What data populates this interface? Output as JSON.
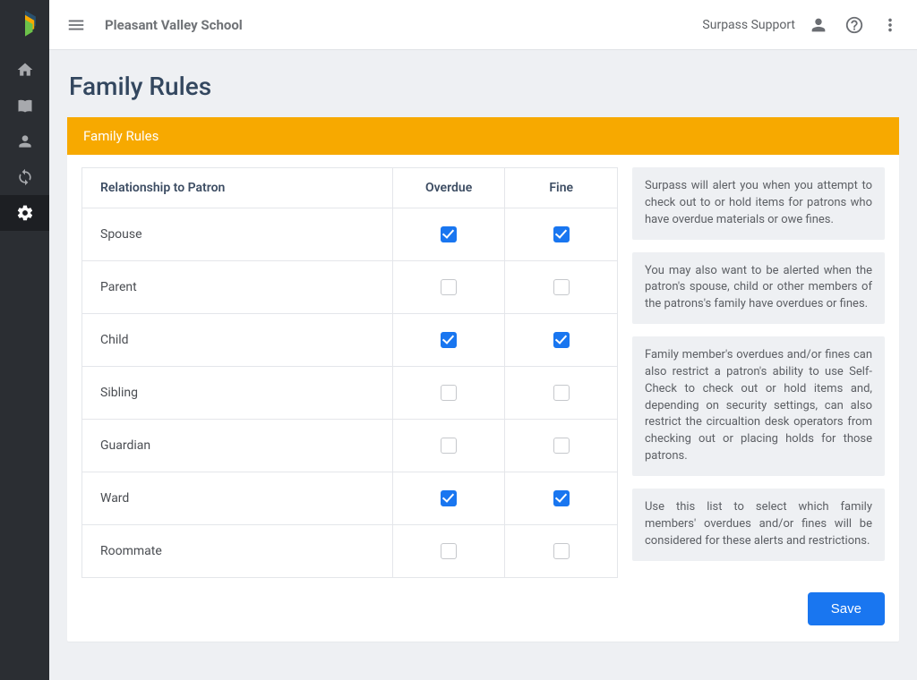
{
  "colors": {
    "nav_bg": "#2b2e33",
    "nav_active_bg": "#1d1f23",
    "topbar_bg": "#ffffff",
    "page_bg": "#eef0f3",
    "card_header_bg": "#f7a900",
    "card_header_text": "#ffffff",
    "primary": "#1976f0",
    "text_heading": "#33475f",
    "text_body": "#4a4d52",
    "text_muted": "#6b6e73",
    "border": "#e4e6ea",
    "note_bg": "#eef0f3",
    "note_text": "#5c5f64",
    "checkbox_border": "#c6c8cc"
  },
  "topbar": {
    "org_name": "Pleasant Valley School",
    "user_name": "Surpass Support"
  },
  "page": {
    "title": "Family Rules",
    "card_title": "Family Rules",
    "save_label": "Save"
  },
  "table": {
    "columns": {
      "relationship": "Relationship to Patron",
      "overdue": "Overdue",
      "fine": "Fine"
    },
    "rows": [
      {
        "relationship": "Spouse",
        "overdue": true,
        "fine": true
      },
      {
        "relationship": "Parent",
        "overdue": false,
        "fine": false
      },
      {
        "relationship": "Child",
        "overdue": true,
        "fine": true
      },
      {
        "relationship": "Sibling",
        "overdue": false,
        "fine": false
      },
      {
        "relationship": "Guardian",
        "overdue": false,
        "fine": false
      },
      {
        "relationship": "Ward",
        "overdue": true,
        "fine": true
      },
      {
        "relationship": "Roommate",
        "overdue": false,
        "fine": false
      }
    ]
  },
  "notes": [
    "Surpass will alert you when you attempt to check out to or hold items for patrons who have overdue materials or owe fines.",
    "You may also want to be alerted when the patron's spouse, child or other members of the patrons's family have overdues or fines.",
    "Family member's overdues and/or fines can also restrict a patron's ability to use Self-Check to check out or hold items and, depending on security settings, can also restrict the circualtion desk operators from checking out or placing holds for those patrons.",
    "Use this list to select which family members' overdues and/or fines will be considered for these alerts and restrictions."
  ],
  "sidebar": {
    "items": [
      {
        "name": "home",
        "active": false
      },
      {
        "name": "catalog",
        "active": false
      },
      {
        "name": "patrons",
        "active": false
      },
      {
        "name": "sync",
        "active": false
      },
      {
        "name": "settings",
        "active": true
      }
    ]
  }
}
